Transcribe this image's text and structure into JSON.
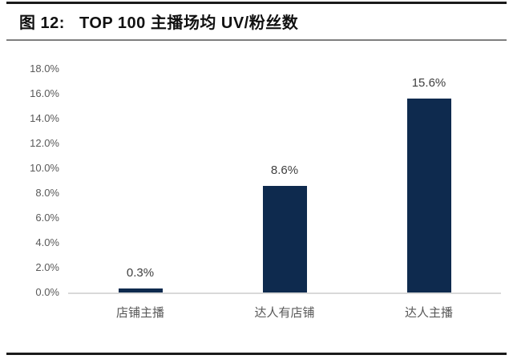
{
  "header": {
    "figure_label": "图 12:",
    "title": "TOP 100 主播场均 UV/粉丝数"
  },
  "chart_data": {
    "type": "bar",
    "title": "TOP 100 主播场均 UV/粉丝数",
    "categories": [
      "店铺主播",
      "达人有店铺",
      "达人主播"
    ],
    "values": [
      0.3,
      8.6,
      15.6
    ],
    "data_labels": [
      "0.3%",
      "8.6%",
      "15.6%"
    ],
    "xlabel": "",
    "ylabel": "",
    "ylim": [
      0,
      18
    ],
    "ytick_step": 2,
    "ytick_labels": [
      "0.0%",
      "2.0%",
      "4.0%",
      "6.0%",
      "8.0%",
      "10.0%",
      "12.0%",
      "14.0%",
      "16.0%",
      "18.0%"
    ],
    "grid": false,
    "legend": false,
    "bar_color": "#0E2A4E",
    "axis_line_color": "#d9d9d9",
    "tick_label_color": "#595959",
    "data_label_color": "#404040"
  }
}
